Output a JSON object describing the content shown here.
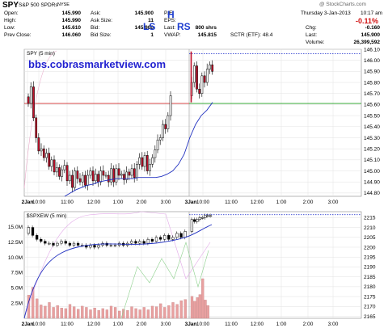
{
  "header": {
    "symbol": "SPY",
    "name": "S&P 500 SPDRs",
    "exchange": "NYSE",
    "watermark": "@ StockCharts.com",
    "date": "Thursday  3-Jan-2013",
    "time": "10:17 am",
    "change_pct": "-0.11%",
    "quotes": [
      {
        "label": "Open:",
        "value": "145.990"
      },
      {
        "label": "High:",
        "value": "145.990"
      },
      {
        "label": "Low:",
        "value": "145.610"
      },
      {
        "label": "Prev Close:",
        "value": "146.060"
      }
    ],
    "quotes2": [
      {
        "label": "Ask:",
        "value": "145.900"
      },
      {
        "label": "Ask Size:",
        "value": "11"
      },
      {
        "label": "Bid:",
        "value": "145.900"
      },
      {
        "label": "Bid Size:",
        "value": "1"
      }
    ],
    "quotes3": [
      {
        "label": "P/E:",
        "value": ""
      },
      {
        "label": "EPS:",
        "value": ""
      },
      {
        "label": "Last:",
        "value": "800 shrs"
      },
      {
        "label": "VWAP:",
        "value": "145.815"
      }
    ],
    "quotes4": [
      {
        "label": "Chg:",
        "value": "-0.160"
      },
      {
        "label": "Last:",
        "value": "145.900"
      },
      {
        "label": "Volume:",
        "value": "26,399,592"
      }
    ],
    "sctr": "SCTR (ETF):  48.4"
  },
  "annotations": {
    "site": "bbs.cobrasmarketview.com",
    "h": "H",
    "ls": "LS",
    "rs": "RS"
  },
  "colors": {
    "up": "#ffffff",
    "down": "#c0102a",
    "ma": "#2030c0",
    "volume_bar": "#e8a0a0",
    "resistance": "#d03030",
    "support": "#20a020",
    "dotted": "#3040d0"
  },
  "chart_data": [
    {
      "type": "candlestick",
      "title": "SPY (5 min)",
      "ylim": [
        144.77,
        146.1
      ],
      "yticks": [
        "146.10",
        "146.00",
        "145.90",
        "145.80",
        "145.70",
        "145.60",
        "145.50",
        "145.40",
        "145.30",
        "145.20",
        "145.10",
        "145.00",
        "144.90",
        "144.80"
      ],
      "xticks": [
        "2Jan",
        "10:00",
        "11:00",
        "12:00",
        "1:00",
        "2:00",
        "3:00",
        "3Jan",
        "10:00",
        "11:00",
        "12:00",
        "1:00",
        "2:00",
        "3:00"
      ],
      "close_price": [
        145.61,
        145.76,
        145.48,
        145.3,
        145.18,
        145.2,
        145.12,
        145.16,
        145.04,
        145.1,
        144.99,
        145.03,
        144.95,
        145.01,
        145.05,
        144.91,
        144.96,
        144.85,
        145.0,
        144.93,
        144.9,
        144.96,
        144.87,
        144.96,
        145.0,
        144.91,
        144.97,
        144.9,
        145.0,
        144.96,
        144.96,
        144.9,
        145.02,
        144.9,
        145.02,
        144.96,
        144.97,
        144.92,
        144.99,
        144.96,
        145.02,
        144.94,
        145.06,
        145.12,
        145.04,
        145.14,
        145.0,
        145.06,
        145.12,
        145.19,
        145.28,
        145.3,
        145.42,
        145.38,
        145.5,
        145.68,
        145.8,
        145.95,
        145.74,
        145.7,
        145.86,
        145.8,
        145.92,
        145.96,
        145.9
      ],
      "ma_line": [
        144.77,
        144.8,
        144.83,
        144.85,
        144.87,
        144.88,
        144.9,
        144.91,
        144.92,
        144.93,
        144.93,
        144.93,
        144.93,
        144.94,
        144.94,
        144.94,
        144.94,
        144.95,
        144.97,
        145.0,
        145.06,
        145.15,
        145.3,
        145.42,
        145.5,
        145.55,
        145.62
      ],
      "vwap": 145.815,
      "resistance": 146.06,
      "support": 145.61
    },
    {
      "type": "line",
      "title": "$SPXEW (5 min)",
      "ylim": [
        2164,
        2218
      ],
      "yticks_right": [
        "2215",
        "2210",
        "2205",
        "2200",
        "2195",
        "2190",
        "2185",
        "2180",
        "2175",
        "2170",
        "2165"
      ],
      "yticks_left": [
        "15.0M",
        "12.5M",
        "10.0M",
        "7.5M",
        "5.0M",
        "2.5M"
      ],
      "xticks": [
        "2Jan",
        "10:00",
        "11:00",
        "12:00",
        "1:00",
        "2:00",
        "3:00",
        "3Jan",
        "10:00",
        "11:00",
        "12:00",
        "1:00",
        "2:00",
        "3:00"
      ],
      "volume_millions": [
        3.8,
        5.1,
        3.2,
        2.2,
        2.0,
        2.6,
        1.8,
        2.1,
        1.7,
        1.6,
        2.3,
        1.9,
        1.5,
        2.0,
        1.8,
        1.4,
        1.7,
        1.3,
        1.6,
        1.4,
        2.0,
        1.8,
        1.2,
        1.5,
        1.3,
        1.9,
        1.6,
        1.4,
        1.8,
        1.4,
        2.0,
        1.9,
        2.4,
        1.8,
        2.1,
        2.6,
        2.3,
        2.9,
        3.1,
        3.6,
        2.8,
        3.4,
        3.9,
        6.5,
        3.0,
        2.1
      ]
    }
  ]
}
